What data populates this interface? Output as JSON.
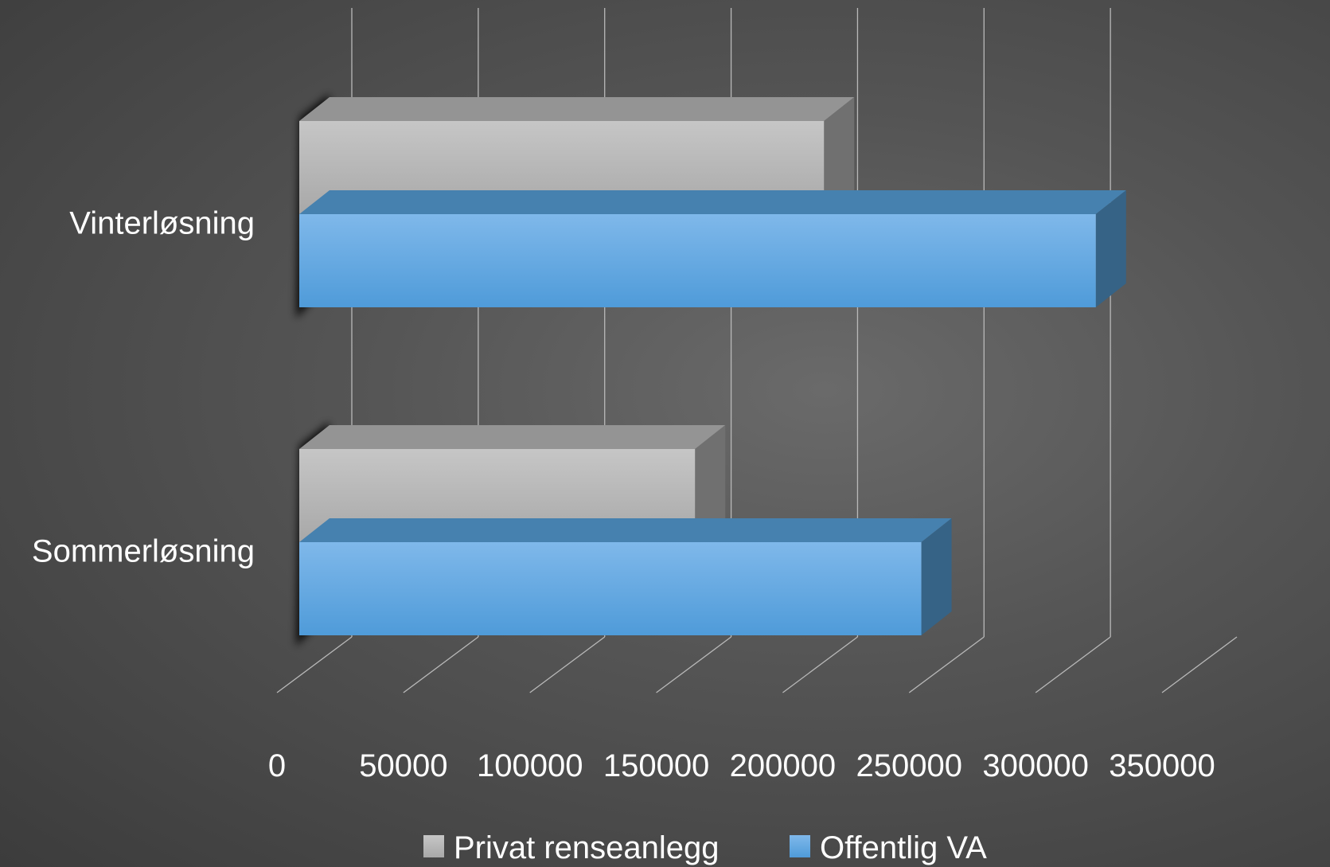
{
  "chart_data": {
    "type": "bar",
    "orientation": "horizontal",
    "style": "3d",
    "categories": [
      "Vinterløsning",
      "Sommerløsning"
    ],
    "series": [
      {
        "name": "Privat renseanlegg",
        "values": [
          207500,
          156500
        ],
        "color": "#b4b4b4"
      },
      {
        "name": "Offentlig VA",
        "values": [
          315000,
          246000
        ],
        "color": "#5aa5e0"
      }
    ],
    "xlim": [
      0,
      350000
    ],
    "x_ticks": [
      "0",
      "50000",
      "100000",
      "150000",
      "200000",
      "250000",
      "300000",
      "350000"
    ],
    "grid": true,
    "legend_position": "bottom"
  }
}
